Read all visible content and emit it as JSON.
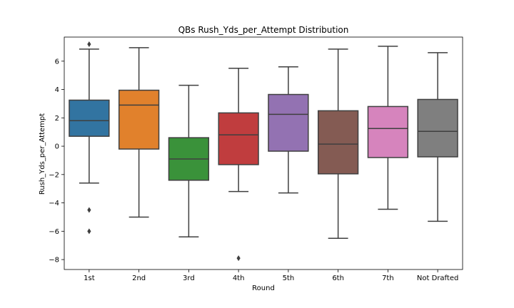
{
  "chart_data": {
    "type": "box",
    "title": "QBs Rush_Yds_per_Attempt Distribution",
    "xlabel": "Round",
    "ylabel": "Rush_Yds_per_Attempt",
    "ylim": [
      -8.7,
      7.7
    ],
    "yticks": [
      -8,
      -6,
      -4,
      -2,
      0,
      2,
      4,
      6
    ],
    "grid": false,
    "categories": [
      "1st",
      "2nd",
      "3rd",
      "4th",
      "5th",
      "6th",
      "7th",
      "Not Drafted"
    ],
    "boxes": [
      {
        "category": "1st",
        "whisker_low": -2.6,
        "q1": 0.7,
        "median": 1.8,
        "q3": 3.25,
        "whisker_high": 6.85,
        "outliers": [
          7.2,
          -4.5,
          -6.0
        ],
        "color": "#3274a1"
      },
      {
        "category": "2nd",
        "whisker_low": -5.0,
        "q1": -0.2,
        "median": 2.9,
        "q3": 3.95,
        "whisker_high": 6.95,
        "outliers": [],
        "color": "#e1812c"
      },
      {
        "category": "3rd",
        "whisker_low": -6.4,
        "q1": -2.4,
        "median": -0.9,
        "q3": 0.6,
        "whisker_high": 4.3,
        "outliers": [],
        "color": "#3a923a"
      },
      {
        "category": "4th",
        "whisker_low": -3.2,
        "q1": -1.3,
        "median": 0.8,
        "q3": 2.35,
        "whisker_high": 5.5,
        "outliers": [
          -7.9
        ],
        "color": "#c03d3e"
      },
      {
        "category": "5th",
        "whisker_low": -3.3,
        "q1": -0.35,
        "median": 2.25,
        "q3": 3.65,
        "whisker_high": 5.6,
        "outliers": [],
        "color": "#9372b2"
      },
      {
        "category": "6th",
        "whisker_low": -6.5,
        "q1": -1.95,
        "median": 0.15,
        "q3": 2.5,
        "whisker_high": 6.85,
        "outliers": [],
        "color": "#845b53"
      },
      {
        "category": "7th",
        "whisker_low": -4.45,
        "q1": -0.8,
        "median": 1.25,
        "q3": 2.8,
        "whisker_high": 7.05,
        "outliers": [],
        "color": "#d684bd"
      },
      {
        "category": "Not Drafted",
        "whisker_low": -5.3,
        "q1": -0.75,
        "median": 1.05,
        "q3": 3.3,
        "whisker_high": 6.6,
        "outliers": [],
        "color": "#7f7f7f"
      }
    ]
  }
}
